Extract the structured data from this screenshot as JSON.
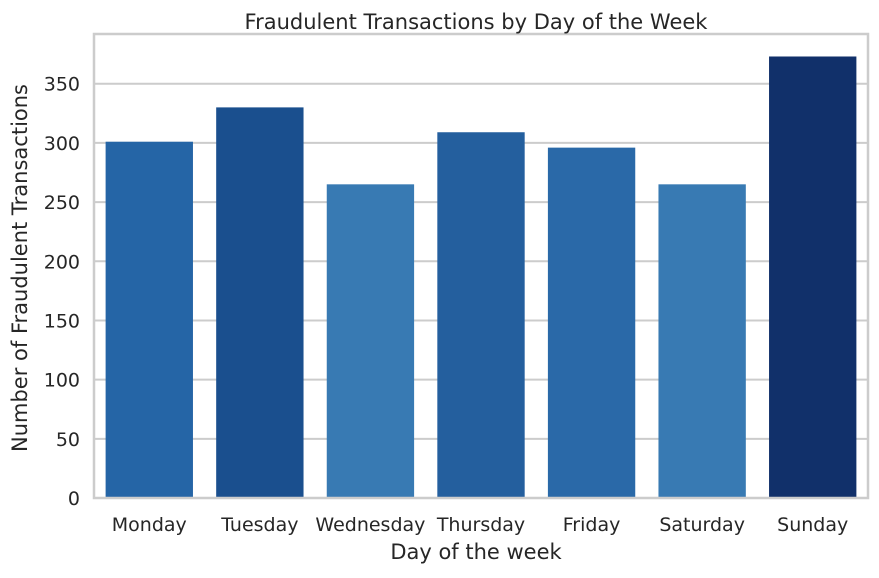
{
  "chart_data": {
    "type": "bar",
    "title": "Fraudulent Transactions by Day of the Week",
    "xlabel": "Day of the week",
    "ylabel": "Number of Fraudulent Transactions",
    "categories": [
      "Monday",
      "Tuesday",
      "Wednesday",
      "Thursday",
      "Friday",
      "Saturday",
      "Sunday"
    ],
    "values": [
      301,
      330,
      265,
      309,
      296,
      265,
      373
    ],
    "ylim": [
      0,
      392
    ],
    "yticks": [
      0,
      50,
      100,
      150,
      200,
      250,
      300,
      350
    ],
    "grid": "horizontal",
    "legend": "none",
    "colors": [
      "#2565a6",
      "#1a4f8e",
      "#387ab3",
      "#245f9e",
      "#2a69a8",
      "#387ab3",
      "#11306a"
    ],
    "gridColor": "#cccccc",
    "axisColor": "#cccccc"
  }
}
